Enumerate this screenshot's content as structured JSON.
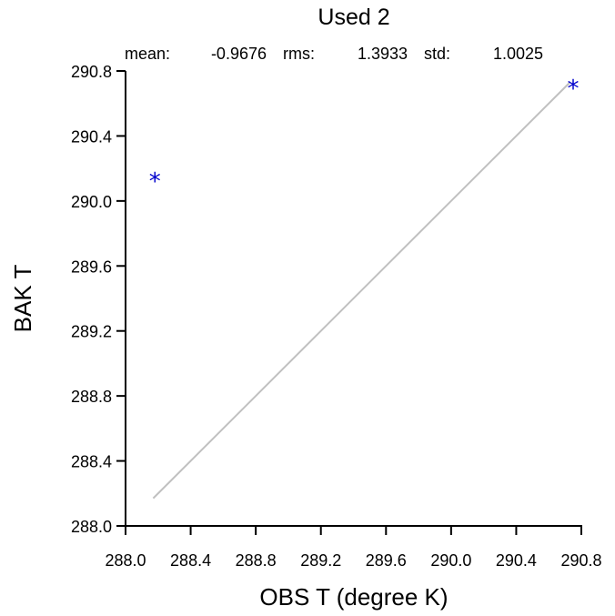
{
  "chart_data": {
    "type": "scatter",
    "title": "Used  2",
    "stats": {
      "mean_label": "mean:",
      "mean_value": "-0.9676",
      "rms_label": "rms:",
      "rms_value": "1.3933",
      "std_label": "std:",
      "std_value": "1.0025"
    },
    "xlabel": "OBS T  (degree K)",
    "ylabel": "BAK T",
    "xlim": [
      288.0,
      290.8
    ],
    "ylim": [
      288.0,
      290.8
    ],
    "xticks": [
      "288.0",
      "288.4",
      "288.8",
      "289.2",
      "289.6",
      "290.0",
      "290.4",
      "290.8"
    ],
    "yticks": [
      "288.0",
      "288.4",
      "288.8",
      "289.2",
      "289.6",
      "290.0",
      "290.4",
      "290.8"
    ],
    "points": [
      {
        "x": 288.18,
        "y": 290.14
      },
      {
        "x": 290.75,
        "y": 290.71
      }
    ],
    "reference_line": {
      "x": [
        288.17,
        290.73
      ],
      "y": [
        288.17,
        290.73
      ]
    },
    "marker": "*",
    "colors": {
      "marker": "#0000cc",
      "reference_line": "#c0c0c0",
      "axis": "#000000"
    },
    "grid": false
  }
}
